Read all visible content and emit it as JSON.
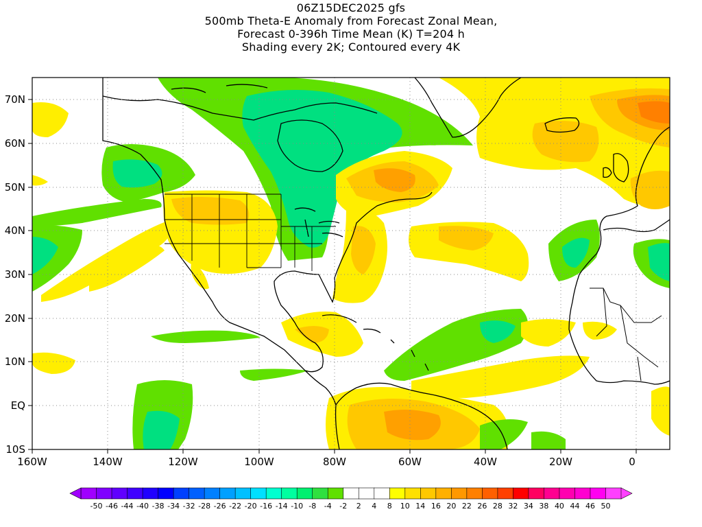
{
  "title": {
    "line1": "06Z15DEC2025 gfs",
    "line2": "500mb Theta-E Anomaly from Forecast Zonal Mean,",
    "line3": "Forecast 0-396h Time Mean (K) T=204 h",
    "line4": "Shading every 2K; Contoured every 4K"
  },
  "axes": {
    "lon_labels": [
      "160W",
      "140W",
      "120W",
      "100W",
      "80W",
      "60W",
      "40W",
      "20W",
      "0"
    ],
    "lat_labels": [
      "70N",
      "60N",
      "50N",
      "40N",
      "30N",
      "20N",
      "10N",
      "EQ",
      "10S"
    ]
  },
  "colorbar": {
    "labels": [
      "-50",
      "-46",
      "-44",
      "-40",
      "-38",
      "-34",
      "-32",
      "-28",
      "-26",
      "-22",
      "-20",
      "-16",
      "-14",
      "-10",
      "-8",
      "-4",
      "-2",
      "2",
      "4",
      "8",
      "10",
      "14",
      "16",
      "20",
      "22",
      "26",
      "28",
      "32",
      "34",
      "38",
      "40",
      "44",
      "46",
      "50"
    ],
    "colors": [
      "#a000ff",
      "#8000ff",
      "#6000ff",
      "#4000ff",
      "#2000ff",
      "#0000ff",
      "#0040ff",
      "#0060ff",
      "#0080ff",
      "#00a0ff",
      "#00c0ff",
      "#00e0ff",
      "#00ffd0",
      "#00ffa0",
      "#00f070",
      "#30e040",
      "#60e000",
      "#ffffff",
      "#ffffff",
      "#ffffff",
      "#ffff00",
      "#ffe000",
      "#ffc800",
      "#ffb000",
      "#ff9800",
      "#ff8000",
      "#ff6000",
      "#ff4000",
      "#ff0000",
      "#ff0060",
      "#ff0090",
      "#ff00b0",
      "#ff00d0",
      "#ff00f0",
      "#ff40ff"
    ]
  },
  "colors": {
    "yellow": "#ffee00",
    "gold": "#ffc800",
    "orange": "#ffa000",
    "dark_orange": "#ff8000",
    "green": "#60e000",
    "mid_green": "#30e040",
    "teal_green": "#00e080"
  }
}
